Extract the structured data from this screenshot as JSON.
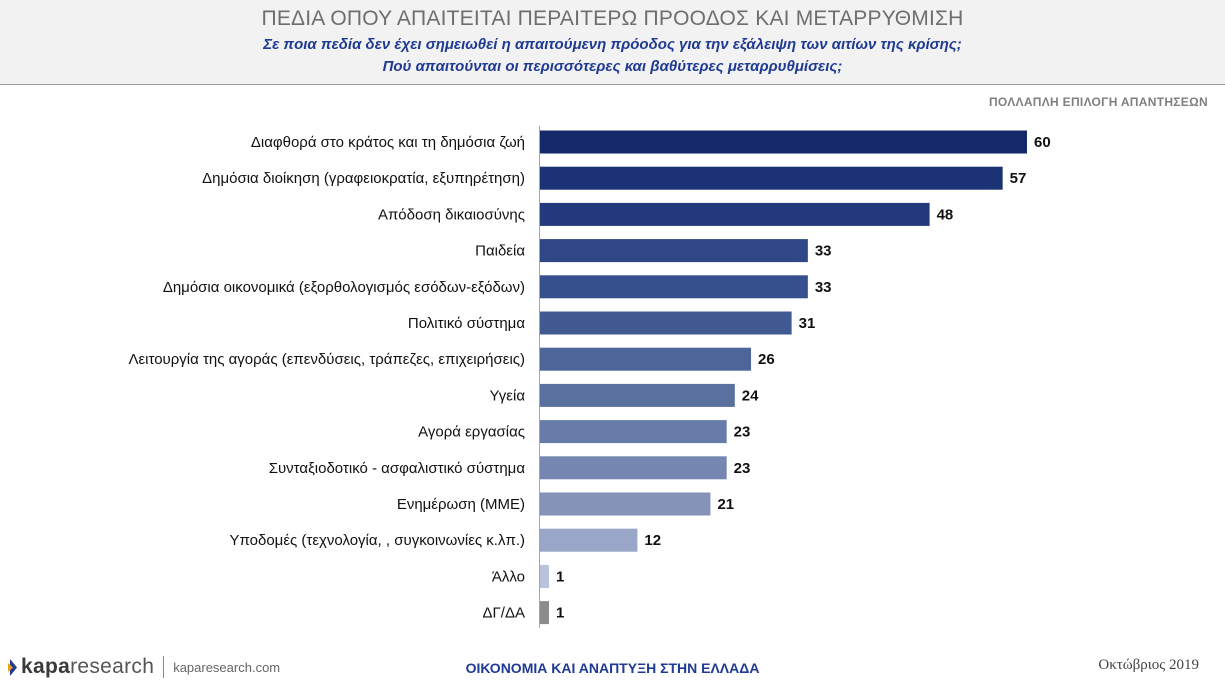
{
  "header": {
    "title": "ΠΕΔΙΑ ΟΠΟΥ ΑΠΑΙΤΕΙΤΑΙ ΠΕΡΑΙΤΕΡΩ ΠΡΟΟΔΟΣ ΚΑΙ ΜΕΤΑΡΡΥΘΜΙΣΗ",
    "subtitle_line1": "Σε ποια πεδία δεν έχει σημειωθεί η απαιτούμενη πρόοδος για την εξάλειψη των αιτίων της κρίσης;",
    "subtitle_line2": "Πού απαιτούνται οι περισσότερες και βαθύτερες μεταρρυθμίσεις;"
  },
  "note": "ΠΟΛΛΑΠΛΗ ΕΠΙΛΟΓΗ ΑΠΑΝΤΗΣΕΩΝ",
  "chart_data": {
    "type": "bar",
    "orientation": "horizontal",
    "categories": [
      "Διαφθορά στο κράτος και τη δημόσια ζωή",
      "Δημόσια διοίκηση (γραφειοκρατία, εξυπηρέτηση)",
      "Απόδοση δικαιοσύνης",
      "Παιδεία",
      "Δημόσια οικονομικά (εξορθολογισμός εσόδων-εξόδων)",
      "Πολιτικό σύστημα",
      "Λειτουργία της αγοράς (επενδύσεις, τράπεζες, επιχειρήσεις)",
      "Υγεία",
      "Αγορά εργασίας",
      "Συνταξιοδοτικό - ασφαλιστικό σύστημα",
      "Ενημέρωση (ΜΜΕ)",
      "Υποδομές (τεχνολογία, , συγκοινωνίες κ.λπ.)",
      "Άλλο",
      "ΔΓ/ΔΑ"
    ],
    "values": [
      60,
      57,
      48,
      33,
      33,
      31,
      26,
      24,
      23,
      23,
      21,
      12,
      1,
      1
    ],
    "colors": [
      "#14286a",
      "#1b3275",
      "#22397e",
      "#2f4787",
      "#36508d",
      "#405990",
      "#4d6598",
      "#5a709f",
      "#677ca8",
      "#7587b0",
      "#8493b7",
      "#9aa6c7",
      "#b9c2da",
      "#8c8c8c"
    ],
    "xlim": [
      0,
      60
    ],
    "grid": false,
    "legend": "none"
  },
  "footer": {
    "logo_bold": "kapa",
    "logo_light": "research",
    "url": "kaparesearch.com",
    "center": "ΟΙΚΟΝΟΜΙΑ ΚΑΙ ΑΝΑΠΤΥΞΗ ΣΤΗΝ ΕΛΛΑΔΑ",
    "date": "Οκτώβριος 2019"
  }
}
